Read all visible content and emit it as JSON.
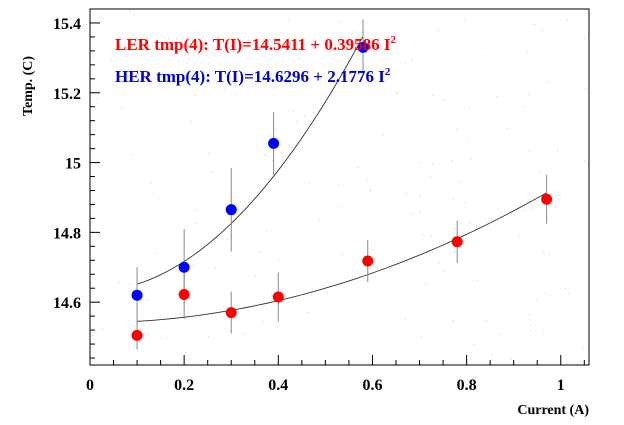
{
  "chart_data": {
    "type": "scatter",
    "title": "",
    "xlabel": "Current (A)",
    "ylabel": "Temp. (C)",
    "xlim": [
      0,
      1.06
    ],
    "ylim": [
      14.42,
      15.44
    ],
    "x_ticks": [
      {
        "value": 0,
        "label": "0"
      },
      {
        "value": 0.2,
        "label": "0.2"
      },
      {
        "value": 0.4,
        "label": "0.4"
      },
      {
        "value": 0.6,
        "label": "0.6"
      },
      {
        "value": 0.8,
        "label": "0.8"
      },
      {
        "value": 1.0,
        "label": "1"
      }
    ],
    "y_ticks": [
      {
        "value": 14.6,
        "label": "14.6"
      },
      {
        "value": 14.8,
        "label": "14.8"
      },
      {
        "value": 15.0,
        "label": "15"
      },
      {
        "value": 15.2,
        "label": "15.2"
      },
      {
        "value": 15.4,
        "label": "15.4"
      }
    ],
    "grid": false,
    "legend_position": "top-left",
    "series": [
      {
        "name": "HER",
        "color": "#0000ff",
        "legend_label": "HER tmp(4): T(I)=14.6296 + 2.1776 I",
        "legend_exponent": "2",
        "fit": {
          "a": 14.6296,
          "b": 2.1776,
          "x_range": [
            0.1,
            0.58
          ]
        },
        "points": [
          {
            "x": 0.1,
            "y": 14.62,
            "err": 0.08
          },
          {
            "x": 0.2,
            "y": 14.7,
            "err": 0.11
          },
          {
            "x": 0.3,
            "y": 14.865,
            "err": 0.12
          },
          {
            "x": 0.39,
            "y": 15.055,
            "err": 0.09
          },
          {
            "x": 0.58,
            "y": 15.33,
            "err": 0.08
          }
        ]
      },
      {
        "name": "LER",
        "color": "#ff0000",
        "legend_label": "LER tmp(4): T(I)=14.5411 + 0.39586 I",
        "legend_exponent": "2",
        "fit": {
          "a": 14.5411,
          "b": 0.39586,
          "x_range": [
            0.1,
            0.97
          ]
        },
        "points": [
          {
            "x": 0.1,
            "y": 14.505,
            "err": 0.04
          },
          {
            "x": 0.2,
            "y": 14.622,
            "err": 0.07
          },
          {
            "x": 0.3,
            "y": 14.57,
            "err": 0.06
          },
          {
            "x": 0.4,
            "y": 14.615,
            "err": 0.07
          },
          {
            "x": 0.59,
            "y": 14.718,
            "err": 0.06
          },
          {
            "x": 0.78,
            "y": 14.773,
            "err": 0.06
          },
          {
            "x": 0.97,
            "y": 14.895,
            "err": 0.07
          }
        ]
      }
    ]
  }
}
